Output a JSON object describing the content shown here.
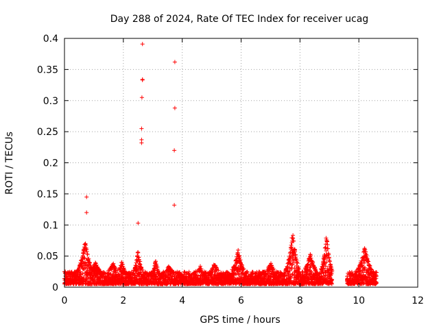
{
  "chart_data": {
    "type": "scatter",
    "title": "Day 288 of 2024, Rate Of TEC Index for receiver ucag",
    "xlabel": "GPS time / hours",
    "ylabel": "ROTI / TECUs",
    "xlim": [
      0,
      12
    ],
    "ylim": [
      0,
      0.4
    ],
    "xticks": [
      0,
      2,
      4,
      6,
      8,
      10,
      12
    ],
    "xtick_labels": [
      "0",
      "2",
      "4",
      "6",
      "8",
      "10",
      "12"
    ],
    "yticks": [
      0,
      0.05,
      0.1,
      0.15,
      0.2,
      0.25,
      0.3,
      0.35,
      0.4
    ],
    "ytick_labels": [
      "0",
      "0.05",
      "0.1",
      "0.15",
      "0.2",
      "0.25",
      "0.3",
      "0.35",
      "0.4"
    ],
    "grid": true,
    "marker": "+",
    "color": "#ff0000",
    "series": [
      {
        "name": "ROTI",
        "segments": [
          {
            "x_start": 0.0,
            "x_end": 9.1
          },
          {
            "x_start": 9.6,
            "x_end": 10.6
          }
        ],
        "baseline_range": [
          0.005,
          0.025
        ],
        "enhancements": [
          {
            "x_center": 0.7,
            "half_width": 0.35,
            "peak": 0.075
          },
          {
            "x_center": 1.05,
            "half_width": 0.3,
            "peak": 0.04
          },
          {
            "x_center": 1.65,
            "half_width": 0.25,
            "peak": 0.04
          },
          {
            "x_center": 1.95,
            "half_width": 0.15,
            "peak": 0.045
          },
          {
            "x_center": 2.5,
            "half_width": 0.2,
            "peak": 0.06
          },
          {
            "x_center": 3.1,
            "half_width": 0.15,
            "peak": 0.045
          },
          {
            "x_center": 3.55,
            "half_width": 0.2,
            "peak": 0.035
          },
          {
            "x_center": 4.6,
            "half_width": 0.2,
            "peak": 0.035
          },
          {
            "x_center": 5.1,
            "half_width": 0.2,
            "peak": 0.04
          },
          {
            "x_center": 5.9,
            "half_width": 0.3,
            "peak": 0.06
          },
          {
            "x_center": 7.0,
            "half_width": 0.25,
            "peak": 0.04
          },
          {
            "x_center": 7.75,
            "half_width": 0.3,
            "peak": 0.09
          },
          {
            "x_center": 8.35,
            "half_width": 0.3,
            "peak": 0.055
          },
          {
            "x_center": 8.9,
            "half_width": 0.25,
            "peak": 0.085
          },
          {
            "x_center": 10.2,
            "half_width": 0.35,
            "peak": 0.065
          }
        ],
        "outliers": [
          {
            "x": 0.75,
            "y": 0.145
          },
          {
            "x": 0.75,
            "y": 0.12
          },
          {
            "x": 2.5,
            "y": 0.103
          },
          {
            "x": 2.65,
            "y": 0.391
          },
          {
            "x": 2.65,
            "y": 0.334
          },
          {
            "x": 2.65,
            "y": 0.333
          },
          {
            "x": 2.63,
            "y": 0.305
          },
          {
            "x": 2.62,
            "y": 0.255
          },
          {
            "x": 2.62,
            "y": 0.237
          },
          {
            "x": 2.62,
            "y": 0.232
          },
          {
            "x": 3.75,
            "y": 0.362
          },
          {
            "x": 3.75,
            "y": 0.288
          },
          {
            "x": 3.73,
            "y": 0.22
          },
          {
            "x": 3.73,
            "y": 0.132
          }
        ]
      }
    ]
  }
}
